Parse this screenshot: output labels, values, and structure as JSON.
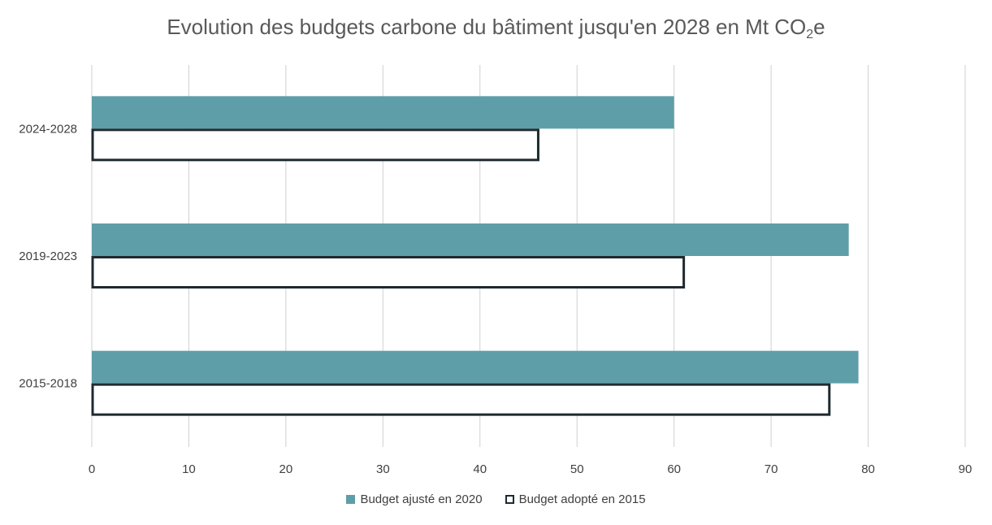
{
  "chart_data": {
    "type": "bar",
    "orientation": "horizontal",
    "title_main": "Evolution des budgets carbone du bâtiment jusqu'en 2028 en Mt CO",
    "title_sub": "2",
    "title_tail": "e",
    "categories": [
      "2024-2028",
      "2019-2023",
      "2015-2018"
    ],
    "series": [
      {
        "name": "Budget ajusté en 2020",
        "values": [
          60,
          78,
          79
        ],
        "color": "#5e9ea8",
        "style": "filled"
      },
      {
        "name": "Budget adopté en 2015",
        "values": [
          46,
          61,
          76
        ],
        "color": "#1f2a30",
        "style": "outline"
      }
    ],
    "xlim": [
      0,
      90
    ],
    "xticks": [
      0,
      10,
      20,
      30,
      40,
      50,
      60,
      70,
      80,
      90
    ],
    "grid": "vertical",
    "legend_position": "bottom"
  }
}
